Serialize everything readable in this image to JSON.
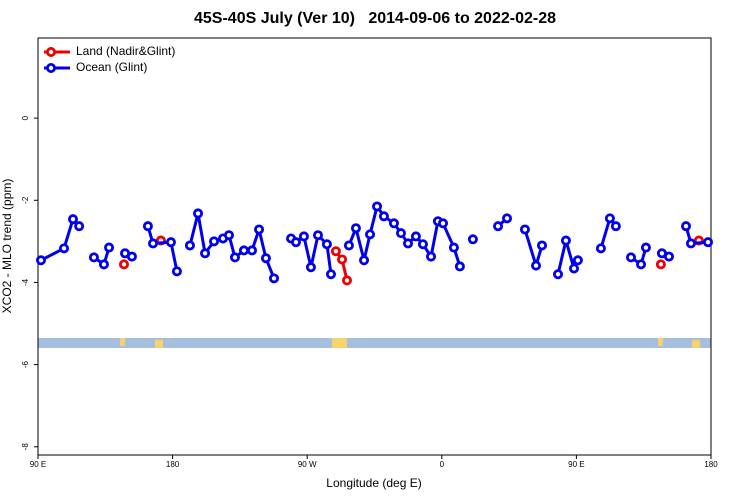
{
  "chart_data": {
    "type": "line",
    "title": "45S-40S July (Ver 10)   2014-09-06 to 2022-02-28",
    "x_label": "Longitude (deg E)",
    "y_label": "XCO2 - MLO trend (ppm)",
    "xlim": [
      90,
      540
    ],
    "xticks": [
      {
        "value": 90,
        "label": "90 E"
      },
      {
        "value": 180,
        "label": "180"
      },
      {
        "value": 270,
        "label": "90 W"
      },
      {
        "value": 360,
        "label": "0"
      },
      {
        "value": 450,
        "label": "90 E"
      },
      {
        "value": 540,
        "label": "180"
      }
    ],
    "ylim": [
      -8.2,
      1.95
    ],
    "yticks": [
      0,
      -2,
      -4,
      -6,
      -8
    ],
    "legend": "upper-left",
    "series": [
      {
        "name": "Land (Nadir&Glint)",
        "color": "#ee0000",
        "x": [
          147.5,
          160,
          172.2,
          230,
          289.2,
          293.3,
          296.6,
          400,
          506.5,
          520,
          531.9
        ],
        "values": [
          -3.56,
          null,
          -2.98,
          null,
          -3.24,
          -3.44,
          -3.95,
          null,
          -3.56,
          null,
          -2.98
        ]
      },
      {
        "name": "Ocean (Glint)",
        "color": "#0000ee",
        "x": [
          92.0,
          107.4,
          113.4,
          117.5,
          122,
          127.4,
          134.1,
          137.5,
          143,
          148.2,
          152.8,
          158,
          163.5,
          166.9,
          178.9,
          182.9,
          187,
          191.6,
          197.0,
          201.7,
          207.7,
          213.7,
          217.7,
          221.7,
          227.7,
          233.1,
          237.8,
          242.4,
          247.8,
          253,
          259.2,
          262.5,
          267.8,
          272.5,
          277.2,
          283.2,
          285.9,
          292,
          297.9,
          302.6,
          308.0,
          312.0,
          316.7,
          321.3,
          328.0,
          332.7,
          337.4,
          342.7,
          347.4,
          352.8,
          357.4,
          360.8,
          368.1,
          372.1,
          376,
          380.8,
          389,
          397.6,
          403.6,
          410,
          415.6,
          423.0,
          427.0,
          432,
          437.7,
          443.0,
          448.4,
          451.0,
          458,
          466.4,
          472.4,
          476.4,
          481,
          486.5,
          493.2,
          496.5,
          502,
          507.2,
          511.9,
          518,
          523.3,
          526.6,
          538.0
        ],
        "values": [
          -3.46,
          -3.17,
          -2.46,
          -2.63,
          null,
          -3.39,
          -3.56,
          -3.15,
          null,
          -3.29,
          -3.37,
          null,
          -2.63,
          -3.05,
          -3.02,
          -3.73,
          null,
          -3.1,
          -2.32,
          -3.29,
          -3.0,
          -2.93,
          -2.85,
          -3.39,
          -3.22,
          -3.22,
          -2.71,
          -3.41,
          -3.9,
          null,
          -2.93,
          -3.02,
          -2.88,
          -3.63,
          -2.85,
          -3.07,
          -3.8,
          null,
          -3.1,
          -2.68,
          -3.46,
          -2.83,
          -2.15,
          -2.39,
          -2.56,
          -2.8,
          -3.05,
          -2.88,
          -3.07,
          -3.37,
          -2.51,
          -2.56,
          -3.15,
          -3.61,
          null,
          -2.95,
          null,
          -2.63,
          -2.44,
          null,
          -2.71,
          -3.59,
          -3.1,
          null,
          -3.8,
          -2.98,
          -3.66,
          -3.46,
          null,
          -3.17,
          -2.44,
          -2.63,
          null,
          -3.39,
          -3.56,
          -3.15,
          null,
          -3.29,
          -3.37,
          null,
          -2.63,
          -3.05,
          -3.02
        ]
      }
    ]
  }
}
